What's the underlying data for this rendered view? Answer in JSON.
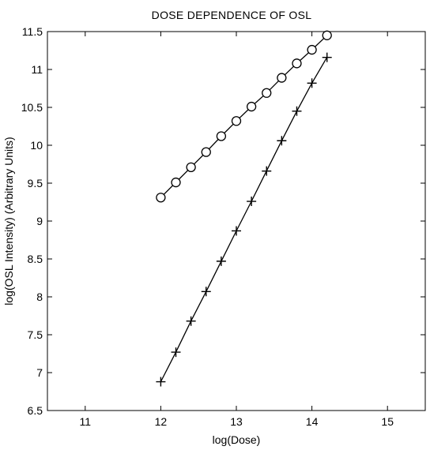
{
  "chart_data": {
    "type": "line",
    "title": "DOSE DEPENDENCE OF OSL",
    "xlabel": "log(Dose)",
    "ylabel": "log(OSL Intensity) (Arbitrary Units)",
    "xlim": [
      10.5,
      15.5
    ],
    "ylim": [
      6.5,
      11.5
    ],
    "xticks": [
      "11",
      "12",
      "13",
      "14",
      "15"
    ],
    "yticks": [
      "6.5",
      "7",
      "7.5",
      "8",
      "8.5",
      "9",
      "9.5",
      "10",
      "10.5",
      "11",
      "11.5"
    ],
    "grid": false,
    "legend": "none",
    "series": [
      {
        "marker": "circle",
        "color": "#000000",
        "x": [
          12.0,
          12.2,
          12.4,
          12.6,
          12.8,
          13.0,
          13.2,
          13.4,
          13.6,
          13.8,
          14.0,
          14.2
        ],
        "y": [
          9.31,
          9.51,
          9.71,
          9.91,
          10.12,
          10.32,
          10.51,
          10.69,
          10.89,
          11.08,
          11.26,
          11.45
        ]
      },
      {
        "marker": "plus",
        "color": "#000000",
        "x": [
          12.0,
          12.2,
          12.4,
          12.6,
          12.8,
          13.0,
          13.2,
          13.4,
          13.6,
          13.8,
          14.0,
          14.2
        ],
        "y": [
          6.88,
          7.27,
          7.68,
          8.07,
          8.47,
          8.87,
          9.26,
          9.66,
          10.06,
          10.45,
          10.82,
          11.16
        ]
      }
    ]
  }
}
